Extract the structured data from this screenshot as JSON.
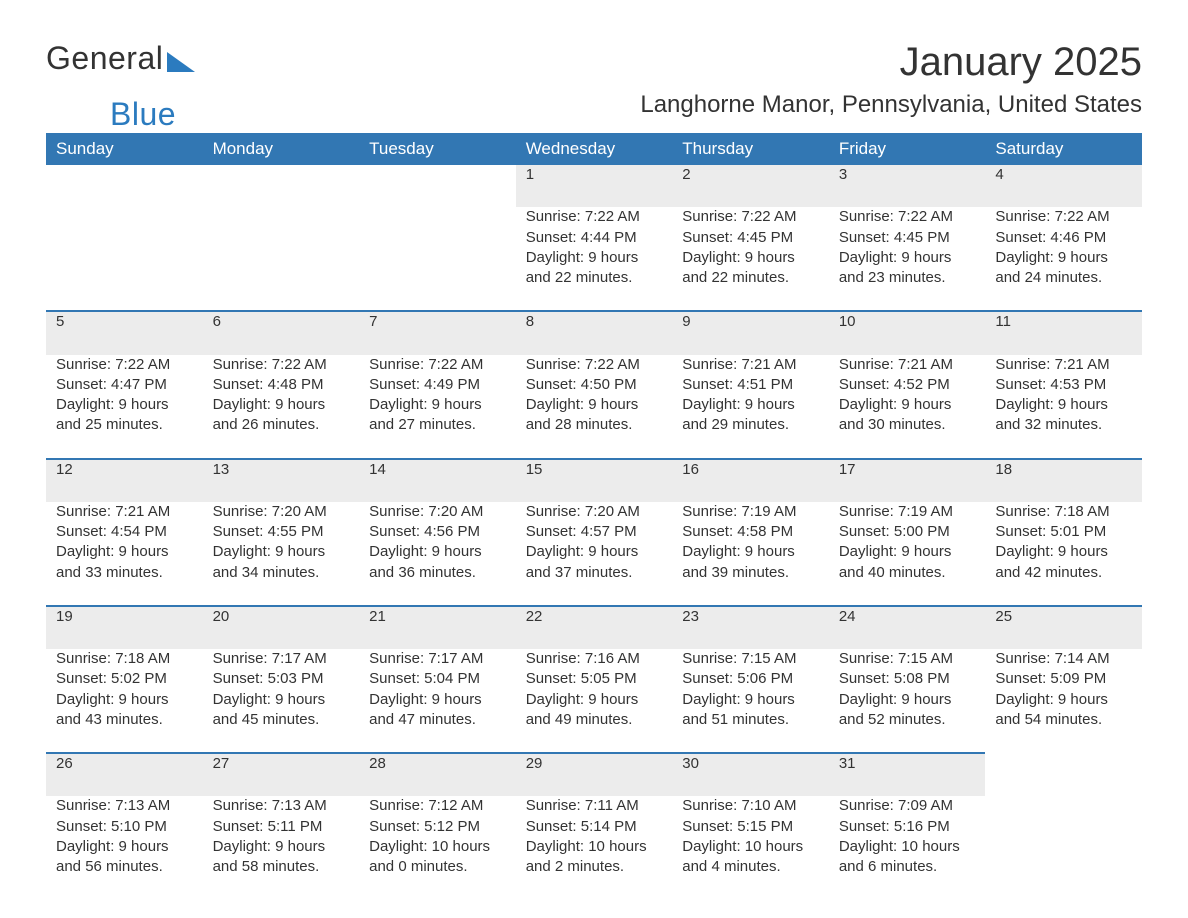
{
  "logo": {
    "part1": "General",
    "part2": "Blue"
  },
  "title": "January 2025",
  "location": "Langhorne Manor, Pennsylvania, United States",
  "colors": {
    "header_bg": "#3277b3",
    "header_text": "#ffffff",
    "daynum_bg": "#ececec",
    "row_border": "#3277b3",
    "body_text": "#333333",
    "logo_blue": "#2b7bbf"
  },
  "day_headers": [
    "Sunday",
    "Monday",
    "Tuesday",
    "Wednesday",
    "Thursday",
    "Friday",
    "Saturday"
  ],
  "weeks": [
    [
      null,
      null,
      null,
      {
        "n": "1",
        "sunrise": "Sunrise: 7:22 AM",
        "sunset": "Sunset: 4:44 PM",
        "daylight": "Daylight: 9 hours and 22 minutes."
      },
      {
        "n": "2",
        "sunrise": "Sunrise: 7:22 AM",
        "sunset": "Sunset: 4:45 PM",
        "daylight": "Daylight: 9 hours and 22 minutes."
      },
      {
        "n": "3",
        "sunrise": "Sunrise: 7:22 AM",
        "sunset": "Sunset: 4:45 PM",
        "daylight": "Daylight: 9 hours and 23 minutes."
      },
      {
        "n": "4",
        "sunrise": "Sunrise: 7:22 AM",
        "sunset": "Sunset: 4:46 PM",
        "daylight": "Daylight: 9 hours and 24 minutes."
      }
    ],
    [
      {
        "n": "5",
        "sunrise": "Sunrise: 7:22 AM",
        "sunset": "Sunset: 4:47 PM",
        "daylight": "Daylight: 9 hours and 25 minutes."
      },
      {
        "n": "6",
        "sunrise": "Sunrise: 7:22 AM",
        "sunset": "Sunset: 4:48 PM",
        "daylight": "Daylight: 9 hours and 26 minutes."
      },
      {
        "n": "7",
        "sunrise": "Sunrise: 7:22 AM",
        "sunset": "Sunset: 4:49 PM",
        "daylight": "Daylight: 9 hours and 27 minutes."
      },
      {
        "n": "8",
        "sunrise": "Sunrise: 7:22 AM",
        "sunset": "Sunset: 4:50 PM",
        "daylight": "Daylight: 9 hours and 28 minutes."
      },
      {
        "n": "9",
        "sunrise": "Sunrise: 7:21 AM",
        "sunset": "Sunset: 4:51 PM",
        "daylight": "Daylight: 9 hours and 29 minutes."
      },
      {
        "n": "10",
        "sunrise": "Sunrise: 7:21 AM",
        "sunset": "Sunset: 4:52 PM",
        "daylight": "Daylight: 9 hours and 30 minutes."
      },
      {
        "n": "11",
        "sunrise": "Sunrise: 7:21 AM",
        "sunset": "Sunset: 4:53 PM",
        "daylight": "Daylight: 9 hours and 32 minutes."
      }
    ],
    [
      {
        "n": "12",
        "sunrise": "Sunrise: 7:21 AM",
        "sunset": "Sunset: 4:54 PM",
        "daylight": "Daylight: 9 hours and 33 minutes."
      },
      {
        "n": "13",
        "sunrise": "Sunrise: 7:20 AM",
        "sunset": "Sunset: 4:55 PM",
        "daylight": "Daylight: 9 hours and 34 minutes."
      },
      {
        "n": "14",
        "sunrise": "Sunrise: 7:20 AM",
        "sunset": "Sunset: 4:56 PM",
        "daylight": "Daylight: 9 hours and 36 minutes."
      },
      {
        "n": "15",
        "sunrise": "Sunrise: 7:20 AM",
        "sunset": "Sunset: 4:57 PM",
        "daylight": "Daylight: 9 hours and 37 minutes."
      },
      {
        "n": "16",
        "sunrise": "Sunrise: 7:19 AM",
        "sunset": "Sunset: 4:58 PM",
        "daylight": "Daylight: 9 hours and 39 minutes."
      },
      {
        "n": "17",
        "sunrise": "Sunrise: 7:19 AM",
        "sunset": "Sunset: 5:00 PM",
        "daylight": "Daylight: 9 hours and 40 minutes."
      },
      {
        "n": "18",
        "sunrise": "Sunrise: 7:18 AM",
        "sunset": "Sunset: 5:01 PM",
        "daylight": "Daylight: 9 hours and 42 minutes."
      }
    ],
    [
      {
        "n": "19",
        "sunrise": "Sunrise: 7:18 AM",
        "sunset": "Sunset: 5:02 PM",
        "daylight": "Daylight: 9 hours and 43 minutes."
      },
      {
        "n": "20",
        "sunrise": "Sunrise: 7:17 AM",
        "sunset": "Sunset: 5:03 PM",
        "daylight": "Daylight: 9 hours and 45 minutes."
      },
      {
        "n": "21",
        "sunrise": "Sunrise: 7:17 AM",
        "sunset": "Sunset: 5:04 PM",
        "daylight": "Daylight: 9 hours and 47 minutes."
      },
      {
        "n": "22",
        "sunrise": "Sunrise: 7:16 AM",
        "sunset": "Sunset: 5:05 PM",
        "daylight": "Daylight: 9 hours and 49 minutes."
      },
      {
        "n": "23",
        "sunrise": "Sunrise: 7:15 AM",
        "sunset": "Sunset: 5:06 PM",
        "daylight": "Daylight: 9 hours and 51 minutes."
      },
      {
        "n": "24",
        "sunrise": "Sunrise: 7:15 AM",
        "sunset": "Sunset: 5:08 PM",
        "daylight": "Daylight: 9 hours and 52 minutes."
      },
      {
        "n": "25",
        "sunrise": "Sunrise: 7:14 AM",
        "sunset": "Sunset: 5:09 PM",
        "daylight": "Daylight: 9 hours and 54 minutes."
      }
    ],
    [
      {
        "n": "26",
        "sunrise": "Sunrise: 7:13 AM",
        "sunset": "Sunset: 5:10 PM",
        "daylight": "Daylight: 9 hours and 56 minutes."
      },
      {
        "n": "27",
        "sunrise": "Sunrise: 7:13 AM",
        "sunset": "Sunset: 5:11 PM",
        "daylight": "Daylight: 9 hours and 58 minutes."
      },
      {
        "n": "28",
        "sunrise": "Sunrise: 7:12 AM",
        "sunset": "Sunset: 5:12 PM",
        "daylight": "Daylight: 10 hours and 0 minutes."
      },
      {
        "n": "29",
        "sunrise": "Sunrise: 7:11 AM",
        "sunset": "Sunset: 5:14 PM",
        "daylight": "Daylight: 10 hours and 2 minutes."
      },
      {
        "n": "30",
        "sunrise": "Sunrise: 7:10 AM",
        "sunset": "Sunset: 5:15 PM",
        "daylight": "Daylight: 10 hours and 4 minutes."
      },
      {
        "n": "31",
        "sunrise": "Sunrise: 7:09 AM",
        "sunset": "Sunset: 5:16 PM",
        "daylight": "Daylight: 10 hours and 6 minutes."
      },
      null
    ]
  ]
}
